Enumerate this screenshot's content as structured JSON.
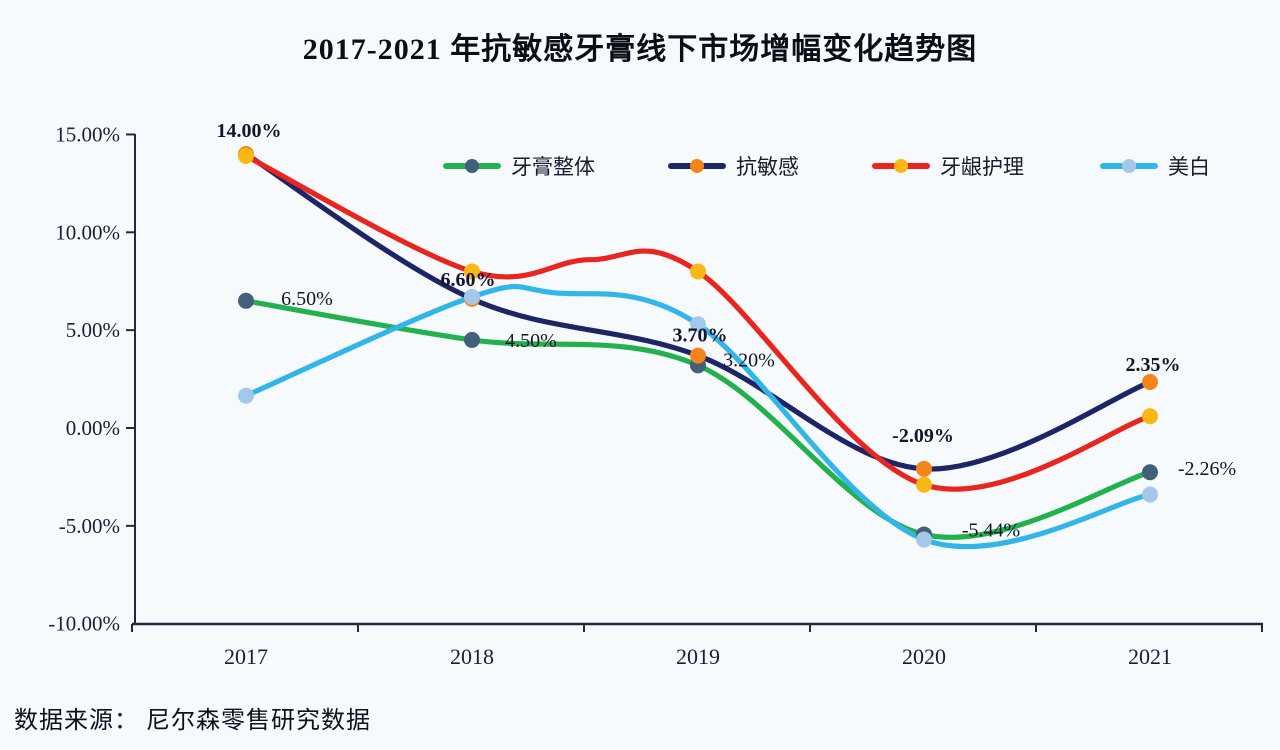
{
  "title": "2017-2021 年抗敏感牙膏线下市场增幅变化趋势图",
  "source": "数据来源： 尼尔森零售研究数据",
  "chart_data": {
    "type": "line",
    "title": "2017-2021 年抗敏感牙膏线下市场增幅变化趋势图",
    "xlabel": "",
    "ylabel": "",
    "categories": [
      "2017",
      "2018",
      "2019",
      "2020",
      "2021"
    ],
    "y_axis": {
      "unit": "%",
      "ylim": [
        -10,
        15
      ],
      "tick_values": [
        15,
        10,
        5,
        0,
        -5,
        -10
      ],
      "tick_labels": [
        "15.00%",
        "10.00%",
        "5.00%",
        "0.00%",
        "-5.00%",
        "-10.00%"
      ]
    },
    "grid": "off",
    "legend_position": "top",
    "series": [
      {
        "key": "overall-toothpaste",
        "name": "牙膏整体",
        "color": "#23b14d",
        "marker_color": "#42607a",
        "values": [
          6.5,
          4.5,
          3.2,
          -5.44,
          -2.26
        ],
        "labels_bold": false,
        "point_labels": [
          {
            "index": 0,
            "text": "6.50%"
          },
          {
            "index": 1,
            "text": "4.50%"
          },
          {
            "index": 2,
            "text": "3.20%"
          },
          {
            "index": 3,
            "text": "-5.44%"
          },
          {
            "index": 4,
            "text": "-2.26%"
          }
        ]
      },
      {
        "key": "anti-sensitivity",
        "name": "抗敏感",
        "color": "#1c2566",
        "marker_color": "#f5851a",
        "values": [
          14.0,
          6.6,
          3.7,
          -2.09,
          2.35
        ],
        "labels_bold": true,
        "point_labels": [
          {
            "index": 0,
            "text": "14.00%"
          },
          {
            "index": 1,
            "text": "6.60%"
          },
          {
            "index": 2,
            "text": "3.70%"
          },
          {
            "index": 3,
            "text": "-2.09%"
          },
          {
            "index": 4,
            "text": "2.35%"
          }
        ]
      },
      {
        "key": "gum-care",
        "name": "牙龈护理",
        "color": "#e8251f",
        "marker_color": "#fbb713",
        "values": [
          13.9,
          8.0,
          8.0,
          -2.9,
          0.6
        ],
        "labels_bold": false,
        "point_labels": []
      },
      {
        "key": "whitening",
        "name": "美白",
        "color": "#33b5e9",
        "marker_color": "#a4c8ea",
        "values": [
          1.65,
          6.7,
          5.3,
          -5.7,
          -3.4
        ],
        "labels_bold": false,
        "point_labels": []
      }
    ]
  }
}
